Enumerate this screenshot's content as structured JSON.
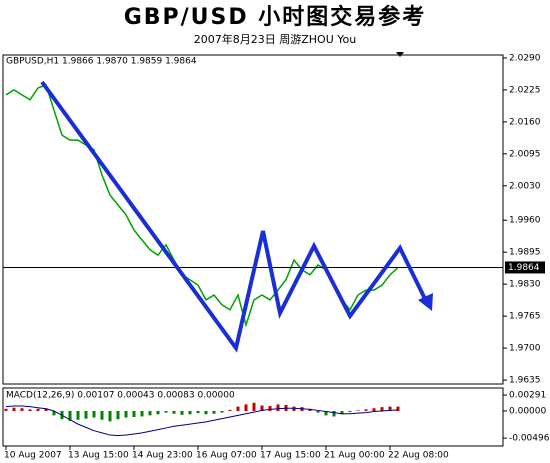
{
  "title": "GBP/USD 小时图交易参考",
  "subtitle": "2007年8月23日    周游ZHOU You",
  "chart_data": [
    {
      "type": "line",
      "label": "GBPUSD,H1  1.9866 1.9870 1.9859 1.9864",
      "color": "#00a000",
      "values": [
        2.0215,
        2.0225,
        2.0215,
        2.0205,
        2.0229,
        2.0235,
        2.0184,
        2.0133,
        2.0123,
        2.0123,
        2.0113,
        2.0103,
        2.0052,
        2.0011,
        1.9991,
        1.9971,
        1.994,
        1.992,
        1.99,
        1.9889,
        1.991,
        1.9879,
        1.9849,
        1.9839,
        1.9828,
        1.9798,
        1.9808,
        1.9788,
        1.9778,
        1.9808,
        1.9747,
        1.9798,
        1.9808,
        1.9798,
        1.9818,
        1.9839,
        1.9879,
        1.9859,
        1.9849,
        1.9869,
        1.9859,
        1.9828,
        1.9798,
        1.9778,
        1.9808,
        1.9818,
        1.9818,
        1.9828,
        1.9849,
        1.9864
      ],
      "ylim": [
        1.9627,
        2.0296
      ],
      "yticks": [
        {
          "value": 2.029,
          "label": "2.0290"
        },
        2.0225,
        {
          "value": 2.016,
          "label": "2.0160"
        },
        2.0095,
        {
          "value": 2.003,
          "label": "2.0030"
        },
        {
          "value": 1.996,
          "label": "1.9960"
        },
        1.9895,
        {
          "value": 1.983,
          "label": "1.9830"
        },
        1.9765,
        {
          "value": 1.97,
          "label": "1.9700"
        },
        1.9635
      ],
      "last_price": 1.9864
    },
    {
      "type": "bar",
      "label": "MACD(12,26,9) 0.00107 0.00043 0.00083 0.00000",
      "color": "#c00000",
      "negative_color": "#008000",
      "values": [
        0.0004,
        0.0006,
        0.0005,
        0.0003,
        0.0004,
        0.0005,
        -0.0008,
        -0.0015,
        -0.0018,
        -0.0016,
        -0.0014,
        -0.0012,
        -0.0016,
        -0.0019,
        -0.0015,
        -0.0012,
        -0.0011,
        -0.001,
        -0.0008,
        -0.0006,
        -0.0003,
        -0.0005,
        -0.0007,
        -0.0006,
        -0.0004,
        -0.0006,
        -0.0005,
        -0.0003,
        0.0002,
        0.0008,
        0.0012,
        0.0015,
        0.001,
        0.0009,
        0.0012,
        0.0011,
        0.0008,
        0.0007,
        0.0004,
        -0.0003,
        -0.0008,
        -0.001,
        -0.0006,
        -0.0002,
        0.0001,
        0.0003,
        0.0005,
        0.0007,
        0.0008,
        0.0008
      ],
      "line_values": [
        0.0008,
        0.0009,
        0.0009,
        0.0008,
        0.0006,
        0.0004,
        0.0,
        -0.0008,
        -0.0016,
        -0.0024,
        -0.003,
        -0.0036,
        -0.004,
        -0.0044,
        -0.0045,
        -0.0044,
        -0.0042,
        -0.004,
        -0.0037,
        -0.0034,
        -0.0031,
        -0.0028,
        -0.0026,
        -0.0024,
        -0.0022,
        -0.002,
        -0.0017,
        -0.0014,
        -0.0011,
        -0.0008,
        -0.0005,
        -0.0002,
        0.0001,
        0.0003,
        0.0004,
        0.0005,
        0.0005,
        0.0004,
        0.0003,
        0.0001,
        -0.0001,
        -0.0003,
        -0.0005,
        -0.0005,
        -0.0004,
        -0.0003,
        -0.0001,
        0.0,
        0.0001,
        0.0002
      ],
      "line_color": "#000080",
      "ylim": [
        -0.0064,
        0.0042
      ],
      "yticks": [
        0.00291,
        {
          "value": 0,
          "label": "0.00000"
        },
        -0.00496
      ],
      "categories": [
        "10 Aug 2007",
        null,
        null,
        null,
        null,
        null,
        null,
        null,
        "13 Aug 15:00",
        null,
        null,
        null,
        null,
        null,
        null,
        null,
        "14 Aug 23:00",
        null,
        null,
        null,
        null,
        null,
        null,
        null,
        "16 Aug 07:00",
        null,
        null,
        null,
        null,
        null,
        null,
        null,
        "17 Aug 15:00",
        null,
        null,
        null,
        null,
        null,
        null,
        null,
        "21 Aug 00:00",
        null,
        null,
        null,
        null,
        null,
        null,
        null,
        "22 Aug 08:00",
        null
      ]
    }
  ]
}
